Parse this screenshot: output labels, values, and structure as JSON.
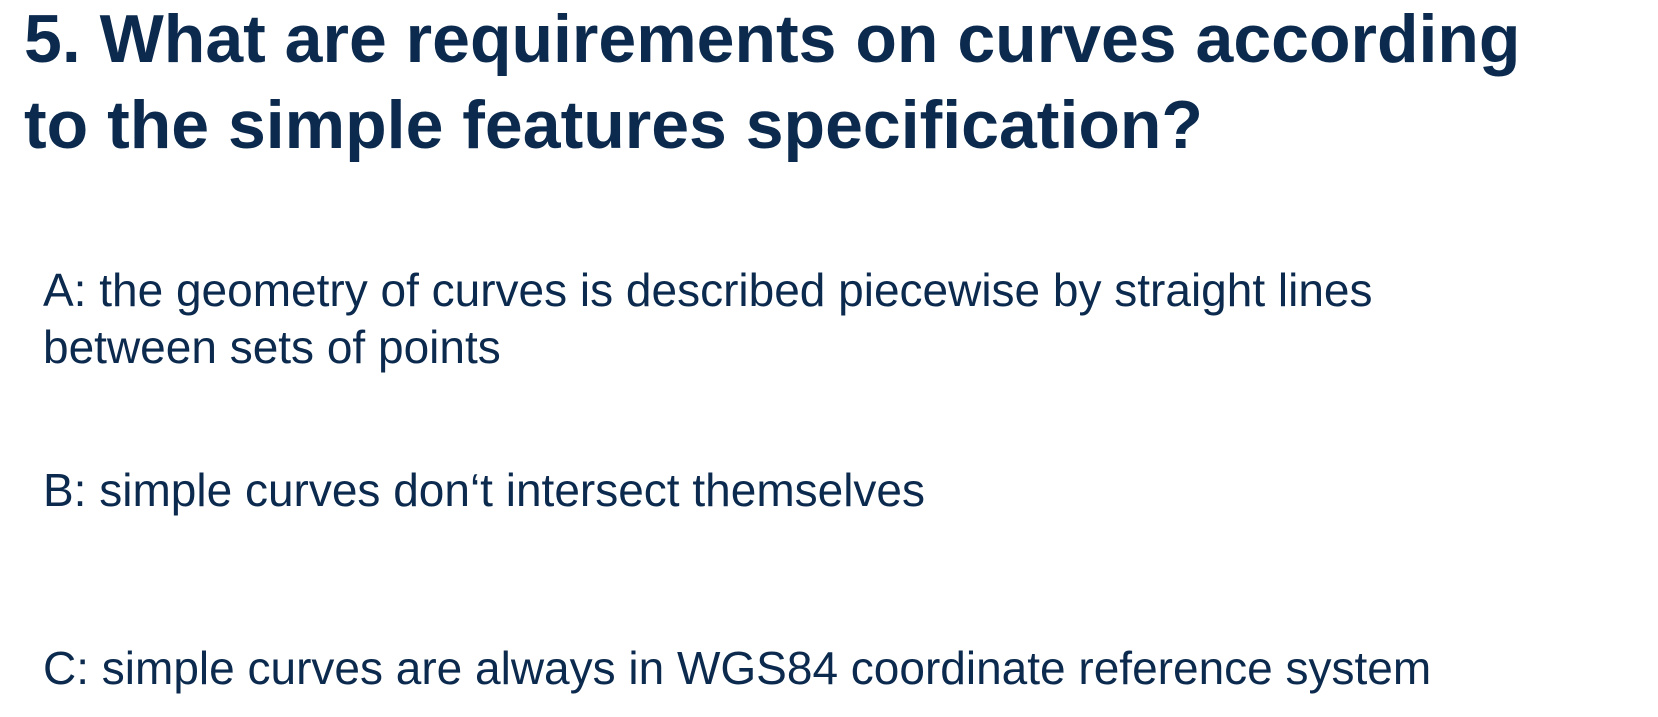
{
  "question": {
    "title_line1": "5. What are requirements on curves according",
    "title_line2": "to the simple features specification?"
  },
  "options": [
    {
      "line1": "A: the geometry of curves is described piecewise by straight lines",
      "line2": "between sets of points"
    },
    {
      "line1": "B: simple curves don‘t intersect themselves"
    },
    {
      "line1": "C: simple curves are always in WGS84 coordinate reference system"
    }
  ],
  "colors": {
    "text": "#0b2a4e",
    "background": "#ffffff"
  }
}
